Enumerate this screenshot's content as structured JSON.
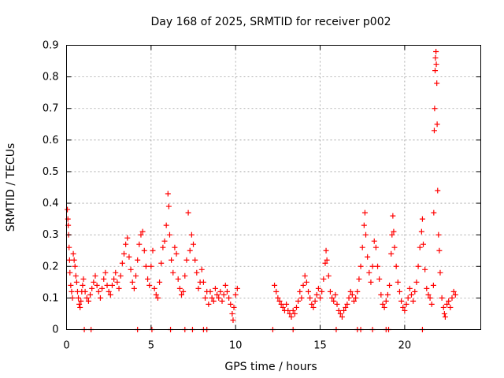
{
  "chart_data": {
    "type": "scatter",
    "title": "Day 168 of 2025, SRMTID for receiver p002",
    "xlabel": "GPS time / hours",
    "ylabel": "SRMTID / TECUs",
    "xlim": [
      0,
      24.5
    ],
    "ylim": [
      0,
      0.9
    ],
    "xticks": [
      "0",
      "5",
      "10",
      "15",
      "20"
    ],
    "yticks": [
      "0",
      "0.1",
      "0.2",
      "0.3",
      "0.4",
      "0.5",
      "0.6",
      "0.7",
      "0.8",
      "0.9"
    ],
    "grid": true,
    "marker": "+",
    "color": "#ff0000",
    "series": [
      {
        "name": "SRMTID",
        "points": [
          [
            0.05,
            0.38
          ],
          [
            0.08,
            0.35
          ],
          [
            0.1,
            0.33
          ],
          [
            0.12,
            0.3
          ],
          [
            0.15,
            0.26
          ],
          [
            0.18,
            0.22
          ],
          [
            0.2,
            0.18
          ],
          [
            0.25,
            0.14
          ],
          [
            0.3,
            0.12
          ],
          [
            0.35,
            0.1
          ],
          [
            0.4,
            0.24
          ],
          [
            0.45,
            0.22
          ],
          [
            0.5,
            0.2
          ],
          [
            0.55,
            0.17
          ],
          [
            0.6,
            0.15
          ],
          [
            0.65,
            0.12
          ],
          [
            0.7,
            0.1
          ],
          [
            0.75,
            0.08
          ],
          [
            0.8,
            0.07
          ],
          [
            0.85,
            0.09
          ],
          [
            0.9,
            0.12
          ],
          [
            0.95,
            0.14
          ],
          [
            1.0,
            0.16
          ],
          [
            1.1,
            0.12
          ],
          [
            1.2,
            0.1
          ],
          [
            1.3,
            0.09
          ],
          [
            1.4,
            0.11
          ],
          [
            1.5,
            0.13
          ],
          [
            1.6,
            0.15
          ],
          [
            1.7,
            0.17
          ],
          [
            1.8,
            0.14
          ],
          [
            1.9,
            0.12
          ],
          [
            2.0,
            0.1
          ],
          [
            2.1,
            0.13
          ],
          [
            2.2,
            0.16
          ],
          [
            2.3,
            0.18
          ],
          [
            2.4,
            0.14
          ],
          [
            2.5,
            0.12
          ],
          [
            2.6,
            0.11
          ],
          [
            2.7,
            0.14
          ],
          [
            2.8,
            0.16
          ],
          [
            2.9,
            0.18
          ],
          [
            3.0,
            0.15
          ],
          [
            3.1,
            0.13
          ],
          [
            3.2,
            0.17
          ],
          [
            3.3,
            0.21
          ],
          [
            3.4,
            0.24
          ],
          [
            3.5,
            0.27
          ],
          [
            3.6,
            0.29
          ],
          [
            3.7,
            0.23
          ],
          [
            3.8,
            0.19
          ],
          [
            3.9,
            0.15
          ],
          [
            4.0,
            0.13
          ],
          [
            4.1,
            0.17
          ],
          [
            4.2,
            0.22
          ],
          [
            4.3,
            0.27
          ],
          [
            4.4,
            0.3
          ],
          [
            4.5,
            0.31
          ],
          [
            4.6,
            0.25
          ],
          [
            4.7,
            0.2
          ],
          [
            4.8,
            0.16
          ],
          [
            4.9,
            0.14
          ],
          [
            5.0,
            0.2
          ],
          [
            5.1,
            0.25
          ],
          [
            5.2,
            0.13
          ],
          [
            5.3,
            0.11
          ],
          [
            5.4,
            0.1
          ],
          [
            5.5,
            0.15
          ],
          [
            5.6,
            0.21
          ],
          [
            5.7,
            0.26
          ],
          [
            5.8,
            0.28
          ],
          [
            5.9,
            0.33
          ],
          [
            6.0,
            0.43
          ],
          [
            6.05,
            0.39
          ],
          [
            6.1,
            0.3
          ],
          [
            6.2,
            0.22
          ],
          [
            6.3,
            0.18
          ],
          [
            6.4,
            0.26
          ],
          [
            6.5,
            0.24
          ],
          [
            6.6,
            0.16
          ],
          [
            6.7,
            0.13
          ],
          [
            6.8,
            0.11
          ],
          [
            6.9,
            0.12
          ],
          [
            7.0,
            0.17
          ],
          [
            7.1,
            0.22
          ],
          [
            7.2,
            0.37
          ],
          [
            7.3,
            0.25
          ],
          [
            7.4,
            0.3
          ],
          [
            7.5,
            0.27
          ],
          [
            7.6,
            0.22
          ],
          [
            7.7,
            0.18
          ],
          [
            7.8,
            0.13
          ],
          [
            7.9,
            0.15
          ],
          [
            8.0,
            0.19
          ],
          [
            8.1,
            0.15
          ],
          [
            8.2,
            0.1
          ],
          [
            8.3,
            0.12
          ],
          [
            8.4,
            0.08
          ],
          [
            8.5,
            0.12
          ],
          [
            8.6,
            0.1
          ],
          [
            8.7,
            0.09
          ],
          [
            8.8,
            0.13
          ],
          [
            8.9,
            0.11
          ],
          [
            9.0,
            0.1
          ],
          [
            9.1,
            0.12
          ],
          [
            9.2,
            0.09
          ],
          [
            9.3,
            0.11
          ],
          [
            9.4,
            0.14
          ],
          [
            9.5,
            0.12
          ],
          [
            9.6,
            0.1
          ],
          [
            9.7,
            0.08
          ],
          [
            9.8,
            0.05
          ],
          [
            9.85,
            0.03
          ],
          [
            9.9,
            0.07
          ],
          [
            10.0,
            0.11
          ],
          [
            10.1,
            0.13
          ],
          [
            12.3,
            0.14
          ],
          [
            12.4,
            0.12
          ],
          [
            12.5,
            0.1
          ],
          [
            12.6,
            0.09
          ],
          [
            12.7,
            0.08
          ],
          [
            12.8,
            0.07
          ],
          [
            12.9,
            0.06
          ],
          [
            13.0,
            0.08
          ],
          [
            13.1,
            0.06
          ],
          [
            13.2,
            0.05
          ],
          [
            13.3,
            0.04
          ],
          [
            13.4,
            0.06
          ],
          [
            13.5,
            0.05
          ],
          [
            13.6,
            0.07
          ],
          [
            13.7,
            0.09
          ],
          [
            13.8,
            0.12
          ],
          [
            13.9,
            0.1
          ],
          [
            14.0,
            0.14
          ],
          [
            14.1,
            0.17
          ],
          [
            14.2,
            0.15
          ],
          [
            14.3,
            0.12
          ],
          [
            14.4,
            0.1
          ],
          [
            14.5,
            0.08
          ],
          [
            14.6,
            0.07
          ],
          [
            14.7,
            0.09
          ],
          [
            14.8,
            0.11
          ],
          [
            14.9,
            0.13
          ],
          [
            15.0,
            0.1
          ],
          [
            15.1,
            0.12
          ],
          [
            15.2,
            0.16
          ],
          [
            15.3,
            0.21
          ],
          [
            15.35,
            0.25
          ],
          [
            15.4,
            0.22
          ],
          [
            15.5,
            0.17
          ],
          [
            15.6,
            0.12
          ],
          [
            15.7,
            0.1
          ],
          [
            15.8,
            0.09
          ],
          [
            15.9,
            0.11
          ],
          [
            16.0,
            0.08
          ],
          [
            16.1,
            0.06
          ],
          [
            16.2,
            0.05
          ],
          [
            16.3,
            0.04
          ],
          [
            16.4,
            0.06
          ],
          [
            16.5,
            0.07
          ],
          [
            16.6,
            0.08
          ],
          [
            16.7,
            0.1
          ],
          [
            16.8,
            0.12
          ],
          [
            16.9,
            0.11
          ],
          [
            17.0,
            0.09
          ],
          [
            17.1,
            0.1
          ],
          [
            17.2,
            0.12
          ],
          [
            17.3,
            0.16
          ],
          [
            17.4,
            0.2
          ],
          [
            17.5,
            0.26
          ],
          [
            17.6,
            0.33
          ],
          [
            17.65,
            0.37
          ],
          [
            17.7,
            0.3
          ],
          [
            17.8,
            0.23
          ],
          [
            17.9,
            0.18
          ],
          [
            18.0,
            0.15
          ],
          [
            18.1,
            0.2
          ],
          [
            18.2,
            0.28
          ],
          [
            18.3,
            0.26
          ],
          [
            18.4,
            0.2
          ],
          [
            18.5,
            0.16
          ],
          [
            18.6,
            0.11
          ],
          [
            18.7,
            0.08
          ],
          [
            18.8,
            0.07
          ],
          [
            18.9,
            0.09
          ],
          [
            19.0,
            0.11
          ],
          [
            19.1,
            0.14
          ],
          [
            19.2,
            0.24
          ],
          [
            19.25,
            0.3
          ],
          [
            19.3,
            0.36
          ],
          [
            19.35,
            0.31
          ],
          [
            19.4,
            0.26
          ],
          [
            19.5,
            0.2
          ],
          [
            19.6,
            0.15
          ],
          [
            19.7,
            0.12
          ],
          [
            19.8,
            0.09
          ],
          [
            19.9,
            0.07
          ],
          [
            20.0,
            0.06
          ],
          [
            20.1,
            0.08
          ],
          [
            20.2,
            0.1
          ],
          [
            20.3,
            0.13
          ],
          [
            20.4,
            0.11
          ],
          [
            20.5,
            0.09
          ],
          [
            20.6,
            0.12
          ],
          [
            20.7,
            0.15
          ],
          [
            20.8,
            0.2
          ],
          [
            20.9,
            0.26
          ],
          [
            21.0,
            0.31
          ],
          [
            21.05,
            0.35
          ],
          [
            21.1,
            0.27
          ],
          [
            21.2,
            0.19
          ],
          [
            21.3,
            0.13
          ],
          [
            21.4,
            0.11
          ],
          [
            21.5,
            0.1
          ],
          [
            21.6,
            0.08
          ],
          [
            21.7,
            0.14
          ],
          [
            21.72,
            0.37
          ],
          [
            21.75,
            0.63
          ],
          [
            21.77,
            0.7
          ],
          [
            21.8,
            0.82
          ],
          [
            21.82,
            0.86
          ],
          [
            21.85,
            0.88
          ],
          [
            21.87,
            0.84
          ],
          [
            21.9,
            0.78
          ],
          [
            21.92,
            0.65
          ],
          [
            21.95,
            0.44
          ],
          [
            22.0,
            0.3
          ],
          [
            22.05,
            0.25
          ],
          [
            22.1,
            0.18
          ],
          [
            22.2,
            0.1
          ],
          [
            22.3,
            0.07
          ],
          [
            22.35,
            0.05
          ],
          [
            22.4,
            0.04
          ],
          [
            22.5,
            0.08
          ],
          [
            22.6,
            0.09
          ],
          [
            22.7,
            0.07
          ],
          [
            22.8,
            0.1
          ],
          [
            22.9,
            0.12
          ],
          [
            23.0,
            0.11
          ],
          [
            1.05,
            0.0
          ],
          [
            1.45,
            0.0
          ],
          [
            4.2,
            0.0
          ],
          [
            5.05,
            0.0
          ],
          [
            6.15,
            0.0
          ],
          [
            7.0,
            0.0
          ],
          [
            7.45,
            0.0
          ],
          [
            8.1,
            0.0
          ],
          [
            8.3,
            0.0
          ],
          [
            12.2,
            0.0
          ],
          [
            13.4,
            0.0
          ],
          [
            15.95,
            0.0
          ],
          [
            17.2,
            0.0
          ],
          [
            17.4,
            0.0
          ],
          [
            18.1,
            0.0
          ],
          [
            18.9,
            0.0
          ],
          [
            19.05,
            0.0
          ],
          [
            21.05,
            0.0
          ]
        ]
      }
    ]
  }
}
